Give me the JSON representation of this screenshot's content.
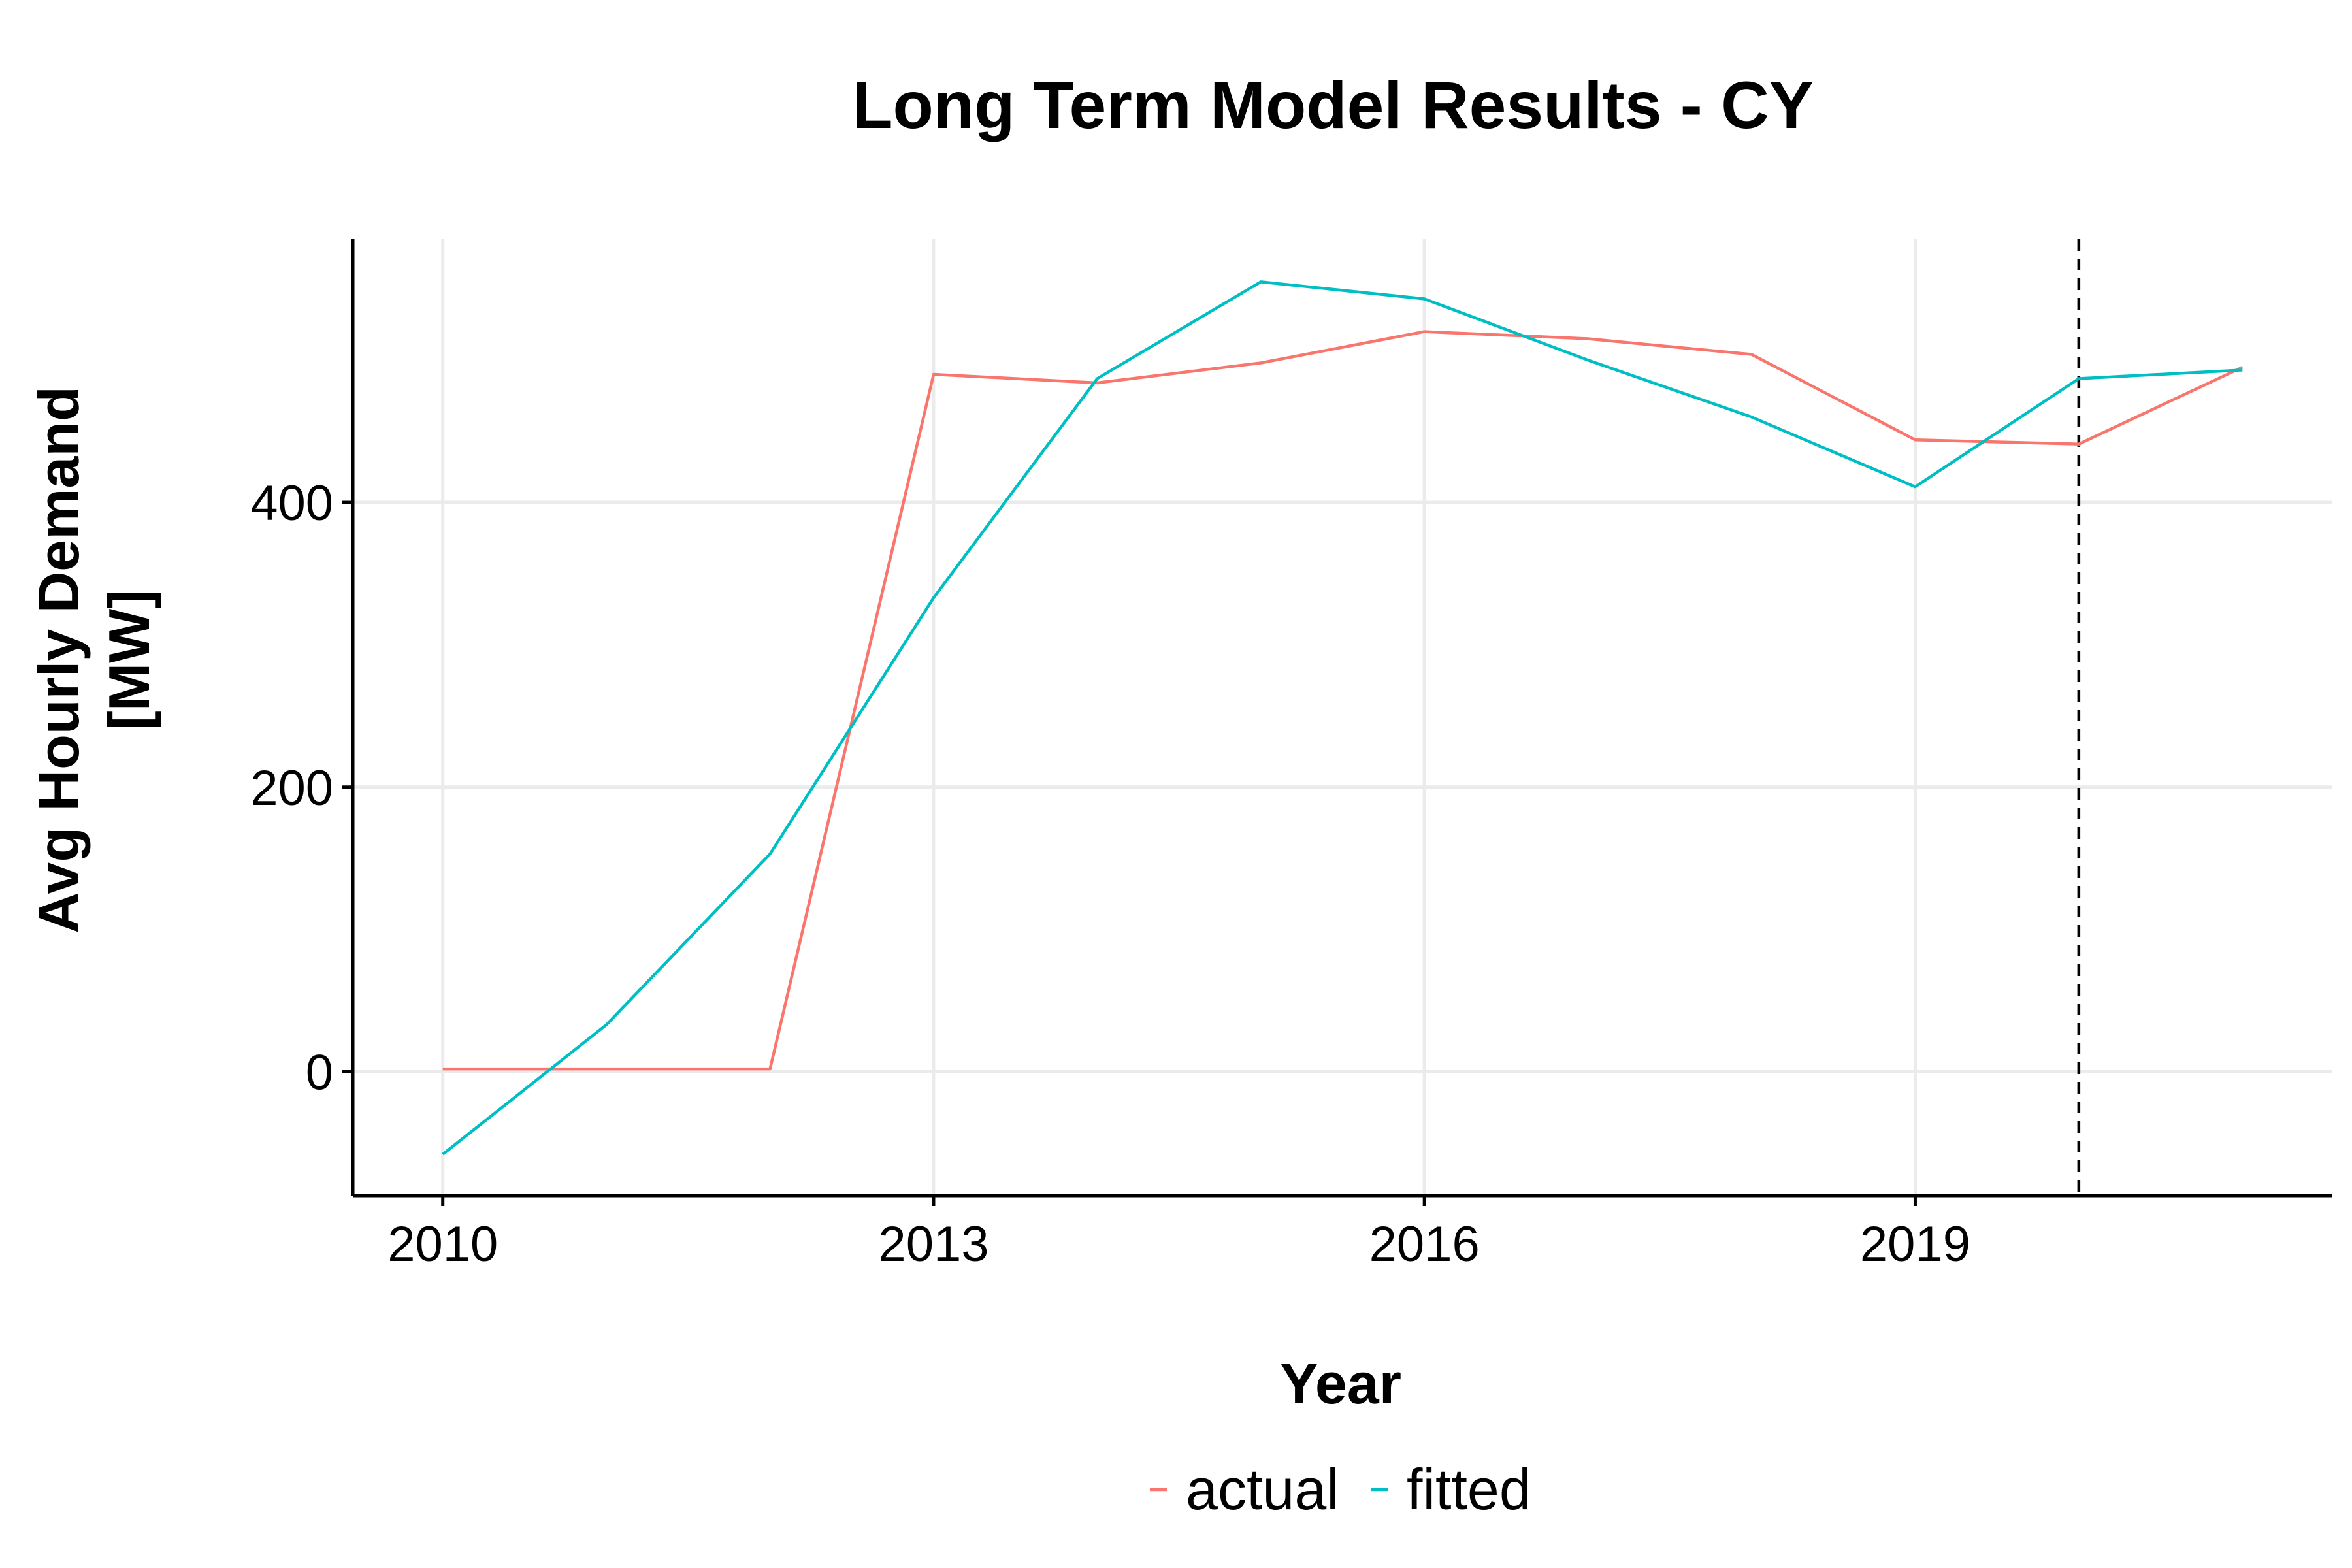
{
  "chart_data": {
    "type": "line",
    "title": "Long Term Model Results - CY",
    "xlabel": "Year",
    "ylabel_line1": "Avg Hourly Demand",
    "ylabel_line2": "[MW]",
    "x": [
      2010,
      2011,
      2012,
      2013,
      2014,
      2015,
      2016,
      2017,
      2018,
      2019,
      2020,
      2021
    ],
    "series": [
      {
        "name": "actual",
        "color": "#f8766d",
        "values": [
          2,
          2,
          2,
          490,
          484,
          498,
          520,
          515,
          504,
          444,
          441,
          495
        ]
      },
      {
        "name": "fitted",
        "color": "#00bfc4",
        "values": [
          -58,
          33,
          153,
          333,
          487,
          555,
          543,
          500,
          460,
          411,
          487,
          493
        ]
      }
    ],
    "xlim": [
      2009.45,
      2021.55
    ],
    "ylim": [
      -87,
      585
    ],
    "xticks": [
      2010,
      2013,
      2016,
      2019
    ],
    "yticks": [
      0,
      200,
      400
    ],
    "vline_x": 2020,
    "grid": true,
    "legend_position": "bottom"
  }
}
